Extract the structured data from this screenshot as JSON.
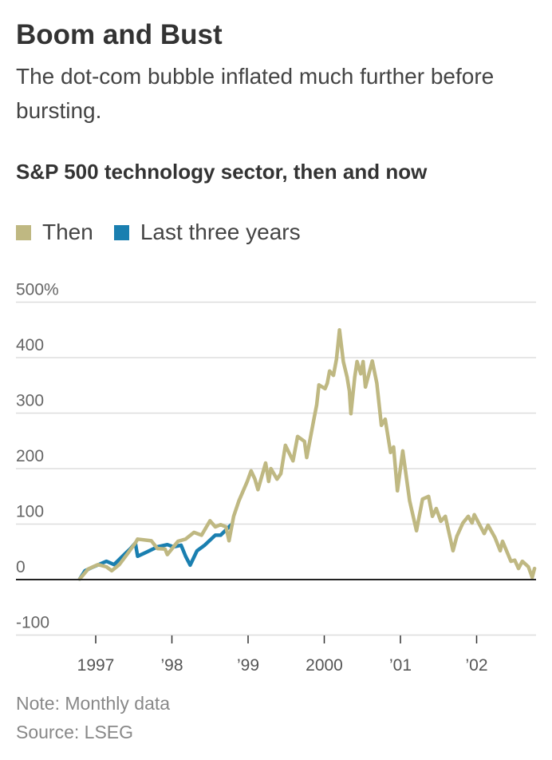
{
  "title": "Boom and Bust",
  "subtitle": "The dot-com bubble inflated much further before bursting.",
  "note": "Note: Monthly data",
  "source": "Source: LSEG",
  "colors": {
    "then": "#bfb882",
    "last_three_years": "#1a7fb0",
    "grid": "#dddddd",
    "zero": "#222222"
  },
  "chart_data": {
    "type": "line",
    "title": "S&P 500 technology sector, then and now",
    "xlabel": "",
    "ylabel": "",
    "ylim": [
      -100,
      500
    ],
    "xlim": [
      1996.6,
      2002.85
    ],
    "grid": true,
    "legend_placement": "top-left",
    "y_ticks": [
      {
        "value": 500,
        "label": "500%"
      },
      {
        "value": 400,
        "label": "400"
      },
      {
        "value": 300,
        "label": "300"
      },
      {
        "value": 200,
        "label": "200"
      },
      {
        "value": 100,
        "label": "100"
      },
      {
        "value": 0,
        "label": "0"
      },
      {
        "value": -100,
        "label": "-100"
      }
    ],
    "x_ticks": [
      {
        "value": 1997,
        "label": "1997"
      },
      {
        "value": 1998,
        "label": "’98"
      },
      {
        "value": 1999,
        "label": "’99"
      },
      {
        "value": 2000,
        "label": "2000"
      },
      {
        "value": 2001,
        "label": "’01"
      },
      {
        "value": 2002,
        "label": "’02"
      }
    ],
    "series": [
      {
        "name": "Last three years",
        "color": "#1a7fb0",
        "points": [
          [
            1996.79,
            1
          ],
          [
            1996.86,
            16
          ],
          [
            1996.97,
            23
          ],
          [
            1997.14,
            33
          ],
          [
            1997.24,
            27
          ],
          [
            1997.39,
            47
          ],
          [
            1997.45,
            55
          ],
          [
            1997.52,
            66
          ],
          [
            1997.55,
            42
          ],
          [
            1997.66,
            49
          ],
          [
            1997.81,
            59
          ],
          [
            1997.94,
            63
          ],
          [
            1998.02,
            59
          ],
          [
            1998.12,
            62
          ],
          [
            1998.18,
            42
          ],
          [
            1998.24,
            26
          ],
          [
            1998.33,
            52
          ],
          [
            1998.43,
            62
          ],
          [
            1998.57,
            80
          ],
          [
            1998.64,
            80
          ],
          [
            1998.75,
            95
          ],
          [
            1998.78,
            99
          ]
        ]
      },
      {
        "name": "Then",
        "color": "#bfb882",
        "points": [
          [
            1996.79,
            1
          ],
          [
            1996.9,
            19
          ],
          [
            1997.03,
            27
          ],
          [
            1997.14,
            23
          ],
          [
            1997.21,
            16
          ],
          [
            1997.31,
            27
          ],
          [
            1997.42,
            47
          ],
          [
            1997.52,
            66
          ],
          [
            1997.55,
            73
          ],
          [
            1997.73,
            70
          ],
          [
            1997.81,
            56
          ],
          [
            1997.91,
            55
          ],
          [
            1997.94,
            45
          ],
          [
            1998.08,
            69
          ],
          [
            1998.18,
            73
          ],
          [
            1998.29,
            85
          ],
          [
            1998.39,
            80
          ],
          [
            1998.5,
            106
          ],
          [
            1998.57,
            95
          ],
          [
            1998.64,
            99
          ],
          [
            1998.71,
            95
          ],
          [
            1998.75,
            70
          ],
          [
            1998.81,
            114
          ],
          [
            1998.88,
            142
          ],
          [
            1998.99,
            177
          ],
          [
            1999.04,
            196
          ],
          [
            1999.09,
            181
          ],
          [
            1999.13,
            162
          ],
          [
            1999.23,
            210
          ],
          [
            1999.27,
            177
          ],
          [
            1999.3,
            200
          ],
          [
            1999.38,
            181
          ],
          [
            1999.43,
            191
          ],
          [
            1999.49,
            242
          ],
          [
            1999.59,
            214
          ],
          [
            1999.65,
            258
          ],
          [
            1999.74,
            249
          ],
          [
            1999.77,
            220
          ],
          [
            1999.86,
            286
          ],
          [
            1999.9,
            315
          ],
          [
            1999.93,
            351
          ],
          [
            2000.01,
            344
          ],
          [
            2000.04,
            354
          ],
          [
            2000.07,
            376
          ],
          [
            2000.12,
            368
          ],
          [
            2000.16,
            397
          ],
          [
            2000.2,
            450
          ],
          [
            2000.25,
            393
          ],
          [
            2000.3,
            365
          ],
          [
            2000.33,
            340
          ],
          [
            2000.35,
            299
          ],
          [
            2000.4,
            365
          ],
          [
            2000.43,
            393
          ],
          [
            2000.48,
            371
          ],
          [
            2000.51,
            393
          ],
          [
            2000.54,
            347
          ],
          [
            2000.63,
            394
          ],
          [
            2000.69,
            354
          ],
          [
            2000.75,
            278
          ],
          [
            2000.8,
            289
          ],
          [
            2000.87,
            229
          ],
          [
            2000.91,
            239
          ],
          [
            2000.96,
            160
          ],
          [
            2001.03,
            232
          ],
          [
            2001.12,
            142
          ],
          [
            2001.21,
            88
          ],
          [
            2001.29,
            145
          ],
          [
            2001.37,
            150
          ],
          [
            2001.42,
            114
          ],
          [
            2001.47,
            128
          ],
          [
            2001.53,
            105
          ],
          [
            2001.59,
            114
          ],
          [
            2001.69,
            52
          ],
          [
            2001.74,
            78
          ],
          [
            2001.82,
            102
          ],
          [
            2001.89,
            114
          ],
          [
            2001.94,
            102
          ],
          [
            2001.97,
            117
          ],
          [
            2002.1,
            83
          ],
          [
            2002.15,
            98
          ],
          [
            2002.24,
            76
          ],
          [
            2002.31,
            52
          ],
          [
            2002.34,
            69
          ],
          [
            2002.45,
            33
          ],
          [
            2002.5,
            35
          ],
          [
            2002.55,
            20
          ],
          [
            2002.6,
            33
          ],
          [
            2002.68,
            23
          ],
          [
            2002.73,
            4
          ],
          [
            2002.76,
            20
          ]
        ]
      }
    ],
    "legend": [
      {
        "label": "Then",
        "color": "#bfb882"
      },
      {
        "label": "Last three years",
        "color": "#1a7fb0"
      }
    ]
  }
}
